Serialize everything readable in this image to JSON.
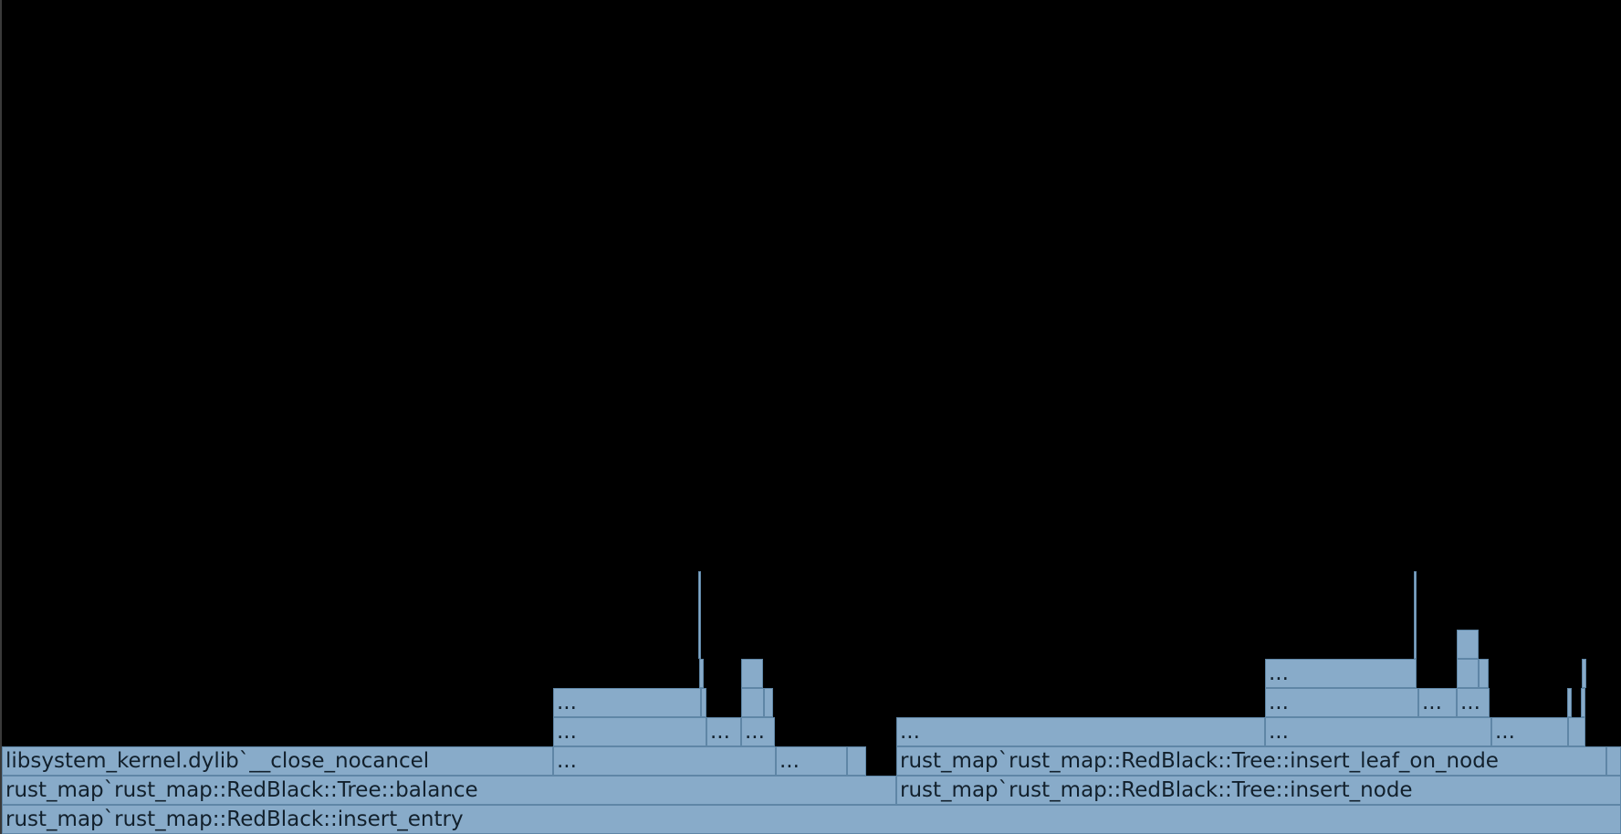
{
  "flamegraph": {
    "frames": [
      {
        "name": "rust_map`rust_map::RedBlack::insert_entry",
        "label": "rust_map`rust_map::RedBlack::insert_entry"
      },
      {
        "name": "rust_map`rust_map::RedBlack::Tree::balance",
        "label": "rust_map`rust_map::RedBlack::Tree::balance"
      },
      {
        "name": "rust_map`rust_map::RedBlack::Tree::insert_node",
        "label": "rust_map`rust_map::RedBlack::Tree::insert_node"
      },
      {
        "name": "libsystem_kernel.dylib`__close_nocancel",
        "label": "libsystem_kernel.dylib`__close_nocancel"
      },
      {
        "name": "collapsed",
        "label": "..."
      },
      {
        "name": "collapsed",
        "label": "..."
      },
      {
        "name": "collapsed",
        "label": ""
      },
      {
        "name": "rust_map`rust_map::RedBlack::Tree::insert_leaf_on_node",
        "label": "rust_map`rust_map::RedBlack::Tree::insert_leaf_on_node"
      },
      {
        "name": "collapsed",
        "label": ""
      },
      {
        "name": "collapsed",
        "label": "..."
      },
      {
        "name": "collapsed",
        "label": "..."
      },
      {
        "name": "collapsed",
        "label": "..."
      },
      {
        "name": "collapsed",
        "label": "..."
      },
      {
        "name": "collapsed",
        "label": "..."
      },
      {
        "name": "collapsed",
        "label": "..."
      },
      {
        "name": "collapsed",
        "label": ""
      },
      {
        "name": "collapsed",
        "label": "..."
      },
      {
        "name": "collapsed",
        "label": ""
      },
      {
        "name": "collapsed",
        "label": ""
      },
      {
        "name": "collapsed",
        "label": ""
      },
      {
        "name": "collapsed",
        "label": ""
      },
      {
        "name": "collapsed",
        "label": ""
      },
      {
        "name": "collapsed",
        "label": "..."
      },
      {
        "name": "collapsed",
        "label": "..."
      },
      {
        "name": "collapsed",
        "label": "..."
      },
      {
        "name": "collapsed",
        "label": ""
      },
      {
        "name": "collapsed",
        "label": ""
      },
      {
        "name": "collapsed",
        "label": ""
      },
      {
        "name": "collapsed",
        "label": ""
      },
      {
        "name": "collapsed",
        "label": "..."
      },
      {
        "name": "collapsed",
        "label": ""
      },
      {
        "name": "collapsed",
        "label": ""
      },
      {
        "name": "collapsed",
        "label": ""
      },
      {
        "name": "collapsed",
        "label": ""
      },
      {
        "name": "collapsed",
        "label": ""
      }
    ]
  }
}
